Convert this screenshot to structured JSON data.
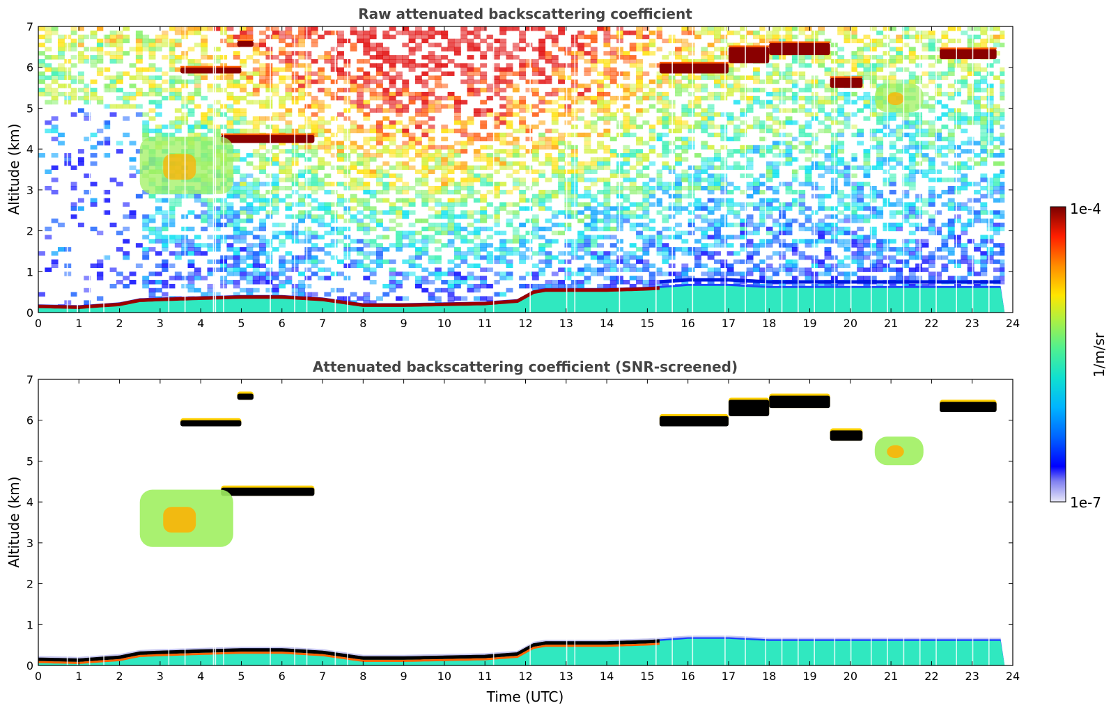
{
  "chart_data": [
    {
      "type": "heatmap",
      "title": "Raw attenuated backscattering coefficient",
      "xlabel": "",
      "ylabel": "Altitude (km)",
      "xlim": [
        0,
        24
      ],
      "ylim": [
        0,
        7
      ],
      "x_ticks": [
        "0",
        "1",
        "2",
        "3",
        "4",
        "5",
        "6",
        "7",
        "8",
        "9",
        "10",
        "11",
        "12",
        "13",
        "14",
        "15",
        "16",
        "17",
        "18",
        "19",
        "20",
        "21",
        "22",
        "23",
        "24"
      ],
      "y_ticks": [
        "0",
        "1",
        "2",
        "3",
        "4",
        "5",
        "6",
        "7"
      ],
      "data_end_time": 23.8,
      "boundary_layer_top_km": [
        [
          0,
          0.15
        ],
        [
          1,
          0.13
        ],
        [
          2,
          0.2
        ],
        [
          2.5,
          0.3
        ],
        [
          3,
          0.32
        ],
        [
          4,
          0.35
        ],
        [
          5,
          0.38
        ],
        [
          6,
          0.38
        ],
        [
          6.5,
          0.35
        ],
        [
          7,
          0.32
        ],
        [
          8,
          0.18
        ],
        [
          9,
          0.18
        ],
        [
          10,
          0.2
        ],
        [
          11,
          0.22
        ],
        [
          11.8,
          0.28
        ],
        [
          12.2,
          0.5
        ],
        [
          12.5,
          0.55
        ],
        [
          13,
          0.55
        ],
        [
          14,
          0.55
        ],
        [
          15,
          0.58
        ],
        [
          15.3,
          0.6
        ],
        [
          16,
          0.65
        ],
        [
          17,
          0.65
        ],
        [
          18,
          0.6
        ],
        [
          19,
          0.6
        ],
        [
          20,
          0.6
        ],
        [
          21,
          0.6
        ],
        [
          22,
          0.6
        ],
        [
          23,
          0.6
        ],
        [
          23.8,
          0.6
        ]
      ],
      "cloud_layers": [
        {
          "t_start": 3.5,
          "t_end": 5.0,
          "base_km": 5.85,
          "top_km": 6.0
        },
        {
          "t_start": 4.9,
          "t_end": 5.3,
          "base_km": 6.5,
          "top_km": 6.65
        },
        {
          "t_start": 4.5,
          "t_end": 6.8,
          "base_km": 4.15,
          "top_km": 4.35
        },
        {
          "t_start": 2.5,
          "t_end": 4.8,
          "base_km": 2.9,
          "top_km": 4.3
        },
        {
          "t_start": 15.3,
          "t_end": 17.0,
          "base_km": 5.85,
          "top_km": 6.1
        },
        {
          "t_start": 17.0,
          "t_end": 18.0,
          "base_km": 6.1,
          "top_km": 6.5
        },
        {
          "t_start": 18.0,
          "t_end": 19.5,
          "base_km": 6.3,
          "top_km": 6.6
        },
        {
          "t_start": 19.5,
          "t_end": 20.3,
          "base_km": 5.5,
          "top_km": 5.75
        },
        {
          "t_start": 20.6,
          "t_end": 21.8,
          "base_km": 4.9,
          "top_km": 5.6
        },
        {
          "t_start": 22.2,
          "t_end": 23.6,
          "base_km": 6.2,
          "top_km": 6.45
        }
      ]
    },
    {
      "type": "heatmap",
      "title": "Attenuated backscattering coefficient (SNR-screened)",
      "xlabel": "Time (UTC)",
      "ylabel": "Altitude (km)",
      "xlim": [
        0,
        24
      ],
      "ylim": [
        0,
        7
      ],
      "x_ticks": [
        "0",
        "1",
        "2",
        "3",
        "4",
        "5",
        "6",
        "7",
        "8",
        "9",
        "10",
        "11",
        "12",
        "13",
        "14",
        "15",
        "16",
        "17",
        "18",
        "19",
        "20",
        "21",
        "22",
        "23",
        "24"
      ],
      "y_ticks": [
        "0",
        "1",
        "2",
        "3",
        "4",
        "5",
        "6",
        "7"
      ]
    }
  ],
  "colorbar": {
    "label": "1/m/sr",
    "max_label": "1e-4",
    "min_label": "1e-7",
    "colormap": [
      "#e8e8f8",
      "#0000c8",
      "#0000ff",
      "#0064ff",
      "#00c8ff",
      "#20e0c0",
      "#60f080",
      "#c0f040",
      "#ffe000",
      "#ff9000",
      "#ff2000",
      "#b00000",
      "#780000"
    ]
  }
}
